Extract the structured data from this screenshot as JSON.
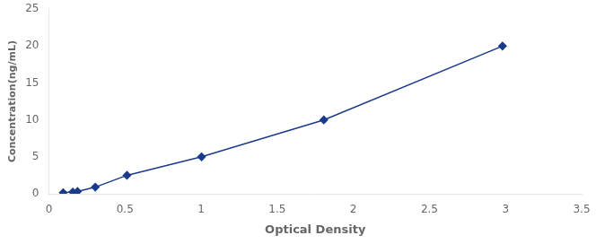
{
  "chart_data": {
    "type": "line",
    "x": [
      0.094,
      0.157,
      0.188,
      0.305,
      0.513,
      1.003,
      1.806,
      2.98
    ],
    "values": [
      0.156,
      0.25,
      0.313,
      0.9,
      2.5,
      5.0,
      10.0,
      20.0
    ],
    "color": "#1a3a8c",
    "marker": "diamond",
    "xlabel": "Optical Density",
    "ylabel": "Concentration(ng/mL)",
    "xlim": [
      0,
      3.5
    ],
    "ylim": [
      0,
      25
    ],
    "xticks": [
      0,
      0.5,
      1,
      1.5,
      2,
      2.5,
      3,
      3.5
    ],
    "yticks": [
      0,
      5,
      10,
      15,
      20,
      25
    ],
    "grid": false
  }
}
